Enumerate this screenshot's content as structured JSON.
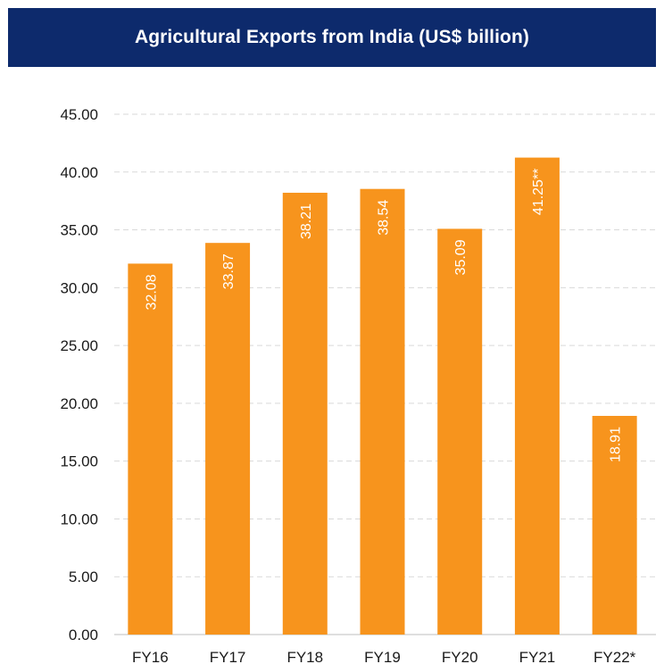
{
  "chart_data": {
    "type": "bar",
    "title": "Agricultural Exports from India (US$ billion)",
    "categories": [
      "FY16",
      "FY17",
      "FY18",
      "FY19",
      "FY20",
      "FY21",
      "FY22*"
    ],
    "values": [
      32.08,
      33.87,
      38.21,
      38.54,
      35.09,
      41.25,
      18.91
    ],
    "value_labels": [
      "32.08",
      "33.87",
      "38.21",
      "38.54",
      "35.09",
      "41.25**",
      "18.91"
    ],
    "ylim": [
      0,
      45
    ],
    "y_ticks": [
      "0.00",
      "5.00",
      "10.00",
      "15.00",
      "20.00",
      "25.00",
      "30.00",
      "35.00",
      "40.00",
      "45.00"
    ],
    "xlabel": "",
    "ylabel": "",
    "grid": true,
    "legend": "none",
    "colors": {
      "bar": "#f7941d",
      "title_bg": "#0d2a6c",
      "grid": "#d9d9d9"
    }
  }
}
